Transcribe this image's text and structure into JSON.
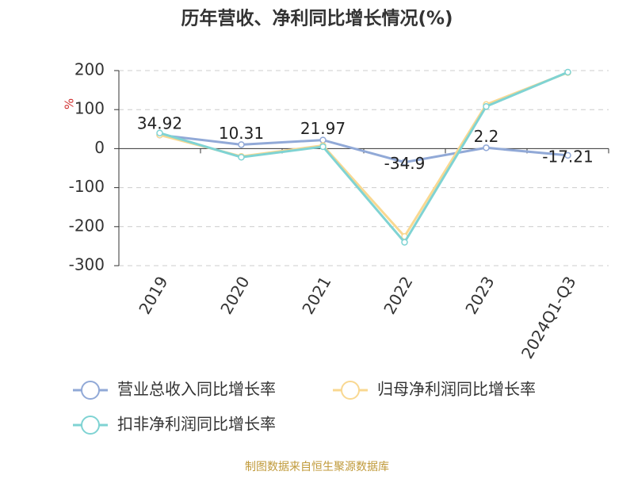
{
  "chart_data": {
    "type": "line",
    "title": "历年营收、净利同比增长情况(%)",
    "y_label": "%",
    "categories": [
      "2019",
      "2020",
      "2021",
      "2022",
      "2023",
      "2024Q1-Q3"
    ],
    "series": [
      {
        "name": "营业总收入同比增长率",
        "color": "#91a9d7",
        "values": [
          34.92,
          10.31,
          21.97,
          -34.9,
          2.2,
          -17.21
        ]
      },
      {
        "name": "归母净利润同比增长率",
        "color": "#f9d891",
        "values": [
          35,
          -20,
          8,
          -225,
          113,
          195
        ]
      },
      {
        "name": "扣非净利润同比增长率",
        "color": "#7fd3d3",
        "values": [
          40,
          -22,
          5,
          -240,
          108,
          196
        ]
      }
    ],
    "ylim": [
      -300,
      200
    ],
    "yticks": [
      -300,
      -200,
      -100,
      0,
      100,
      200
    ],
    "grid": true,
    "source": "制图数据来自恒生聚源数据库"
  }
}
